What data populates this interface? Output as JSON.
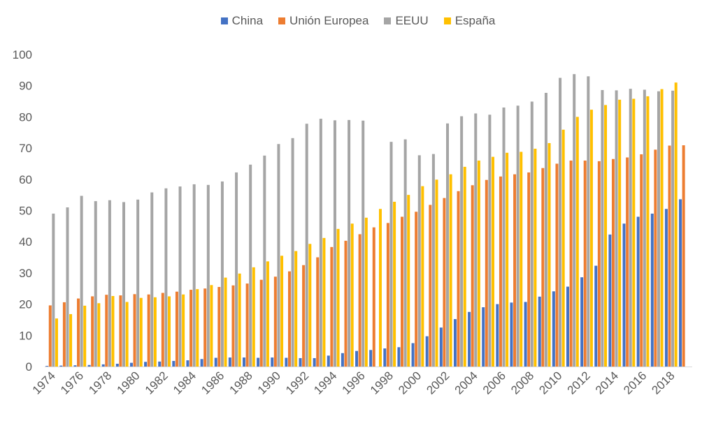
{
  "chart_data": {
    "type": "bar",
    "title": "",
    "xlabel": "",
    "ylabel": "",
    "ylim": [
      0,
      100
    ],
    "yticks": [
      0,
      10,
      20,
      30,
      40,
      50,
      60,
      70,
      80,
      90,
      100
    ],
    "grid": false,
    "legend_position": "top-center",
    "categories": [
      "1974",
      "1975",
      "1976",
      "1977",
      "1978",
      "1979",
      "1980",
      "1981",
      "1982",
      "1983",
      "1984",
      "1985",
      "1986",
      "1987",
      "1988",
      "1989",
      "1990",
      "1991",
      "1992",
      "1993",
      "1994",
      "1995",
      "1996",
      "1997",
      "1998",
      "1999",
      "2000",
      "2001",
      "2002",
      "2003",
      "2004",
      "2005",
      "2006",
      "2007",
      "2008",
      "2009",
      "2010",
      "2011",
      "2012",
      "2013",
      "2014",
      "2015",
      "2016",
      "2017",
      "2018",
      "2019"
    ],
    "xtick_labels": [
      "1974",
      "1976",
      "1978",
      "1980",
      "1982",
      "1984",
      "1986",
      "1988",
      "1990",
      "1992",
      "1994",
      "1996",
      "1998",
      "2000",
      "2002",
      "2004",
      "2006",
      "2008",
      "2010",
      "2012",
      "2014",
      "2016",
      "2018"
    ],
    "series": [
      {
        "name": "China",
        "color": "#4472C4",
        "values": [
          0.2,
          0.3,
          0.4,
          0.5,
          0.7,
          0.9,
          1.2,
          1.5,
          1.6,
          1.8,
          2.0,
          2.4,
          2.8,
          2.9,
          2.9,
          2.8,
          2.9,
          2.8,
          2.7,
          2.7,
          3.5,
          4.3,
          5.0,
          5.3,
          5.8,
          6.2,
          7.5,
          9.7,
          12.5,
          15.2,
          17.5,
          19.0,
          20.0,
          20.5,
          20.7,
          22.4,
          24.1,
          25.6,
          28.6,
          32.3,
          42.3,
          45.8,
          48.0,
          49.0,
          50.5,
          53.6
        ]
      },
      {
        "name": "Unión Europea",
        "color": "#ED7D31",
        "values": [
          19.6,
          20.6,
          21.8,
          22.5,
          23.0,
          22.8,
          23.2,
          23.1,
          23.6,
          24.0,
          24.6,
          25.0,
          25.5,
          26.0,
          26.6,
          27.8,
          28.8,
          30.5,
          32.5,
          35.0,
          38.3,
          40.3,
          42.4,
          44.6,
          46.0,
          48.0,
          49.6,
          51.8,
          54.0,
          56.2,
          58.1,
          59.8,
          60.9,
          61.6,
          62.2,
          63.6,
          65.0,
          66.0,
          66.0,
          65.8,
          66.5,
          67.0,
          68.0,
          69.5,
          70.8,
          70.9
        ]
      },
      {
        "name": "EEUU",
        "color": "#A5A5A5",
        "values": [
          49.0,
          51.0,
          54.7,
          53.0,
          53.3,
          52.7,
          53.5,
          55.8,
          57.1,
          57.7,
          58.4,
          58.2,
          59.3,
          62.2,
          64.7,
          67.6,
          71.3,
          73.2,
          77.8,
          79.4,
          78.9,
          79.0,
          78.8,
          null,
          72.0,
          72.8,
          67.7,
          68.1,
          77.9,
          80.2,
          81.1,
          80.7,
          83.0,
          83.6,
          84.9,
          87.7,
          92.5,
          93.7,
          93.0,
          88.6,
          88.5,
          89.0,
          88.7,
          88.2,
          88.4,
          null
        ]
      },
      {
        "name": "España",
        "color": "#FFC000",
        "values": [
          15.4,
          16.8,
          19.5,
          20.3,
          22.6,
          20.7,
          22.0,
          22.2,
          22.5,
          23.1,
          24.8,
          26.1,
          28.5,
          29.8,
          31.8,
          33.7,
          35.5,
          37.0,
          39.3,
          41.2,
          44.1,
          45.8,
          47.7,
          50.5,
          52.8,
          55.0,
          57.8,
          59.9,
          61.6,
          64.0,
          66.0,
          67.2,
          68.5,
          68.8,
          69.8,
          71.6,
          75.9,
          80.0,
          82.3,
          83.8,
          85.5,
          85.8,
          86.6,
          88.9,
          91.0,
          null
        ]
      }
    ]
  }
}
